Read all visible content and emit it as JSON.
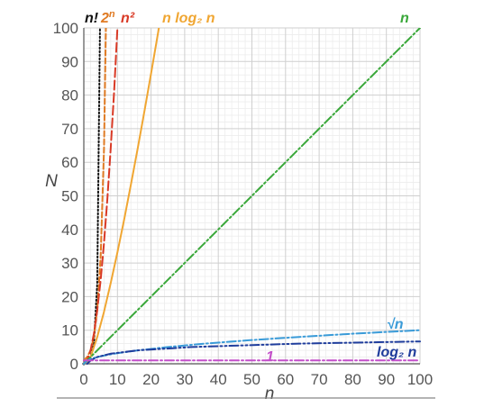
{
  "chart_data": {
    "type": "line",
    "title": "",
    "xlabel": "n",
    "ylabel": "N",
    "xlim": [
      0,
      100
    ],
    "ylim": [
      0,
      100
    ],
    "grid": true,
    "x_ticks": [
      0,
      10,
      20,
      30,
      40,
      50,
      60,
      70,
      80,
      90,
      100
    ],
    "y_ticks": [
      0,
      10,
      20,
      30,
      40,
      50,
      60,
      70,
      80,
      90,
      100
    ],
    "series": [
      {
        "name": "n!",
        "label_parts": [
          "n",
          "!"
        ],
        "color": "#111111",
        "dash": "dotted",
        "x": [
          0,
          1,
          2,
          3,
          4,
          5
        ],
        "y": [
          1,
          1,
          2,
          6,
          24,
          120
        ]
      },
      {
        "name": "2ⁿ",
        "label_parts": [
          "2",
          "n"
        ],
        "color": "#e07b24",
        "dash": "dashed",
        "x": [
          0,
          1,
          2,
          3,
          4,
          5,
          6,
          7
        ],
        "y": [
          1,
          2,
          4,
          8,
          16,
          32,
          64,
          128
        ]
      },
      {
        "name": "n²",
        "label_parts": [
          "n",
          "²"
        ],
        "color": "#d93a26",
        "dash": "long-dashed",
        "x": [
          0,
          1,
          2,
          3,
          4,
          5,
          6,
          7,
          8,
          9,
          10,
          11
        ],
        "y": [
          0,
          1,
          4,
          9,
          16,
          25,
          36,
          49,
          64,
          81,
          100,
          121
        ]
      },
      {
        "name": "n log₂ n",
        "label_parts": [
          "n ",
          "log₂ ",
          "n"
        ],
        "color": "#f0a632",
        "dash": "solid",
        "x": [
          1,
          2,
          4,
          6,
          8,
          10,
          12,
          14,
          16,
          18,
          20,
          22,
          23
        ],
        "y": [
          0,
          2,
          8,
          15.5,
          24,
          33.2,
          43,
          53.3,
          64,
          75,
          86.4,
          98.1,
          104
        ]
      },
      {
        "name": "n",
        "label_parts": [
          "n"
        ],
        "color": "#3aa83a",
        "dash": "dash-dot",
        "x": [
          0,
          100
        ],
        "y": [
          0,
          100
        ]
      },
      {
        "name": "√n",
        "label_parts": [
          "√",
          "n"
        ],
        "color": "#3a9bd8",
        "dash": "dash-dot",
        "x": [
          0,
          1,
          2,
          4,
          6,
          9,
          16,
          25,
          36,
          49,
          64,
          81,
          100
        ],
        "y": [
          0,
          1,
          1.41,
          2,
          2.45,
          3,
          4,
          5,
          6,
          7,
          8,
          9,
          10
        ]
      },
      {
        "name": "log₂ n",
        "label_parts": [
          "log₂ ",
          "n"
        ],
        "color": "#1f3d9c",
        "dash": "dash-dot-dot",
        "x": [
          1,
          2,
          4,
          8,
          16,
          32,
          64,
          100
        ],
        "y": [
          0,
          1,
          2,
          3,
          4,
          5,
          6,
          6.64
        ]
      },
      {
        "name": "1",
        "label_parts": [
          "1"
        ],
        "color": "#c34fc9",
        "dash": "dash-dot",
        "x": [
          0,
          100
        ],
        "y": [
          1,
          1
        ]
      }
    ]
  }
}
